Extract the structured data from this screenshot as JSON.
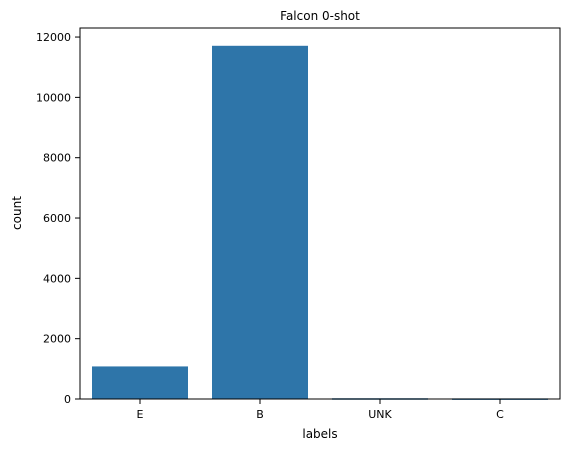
{
  "chart_data": {
    "type": "bar",
    "title": "Falcon 0-shot",
    "xlabel": "labels",
    "ylabel": "count",
    "categories": [
      "E",
      "B",
      "UNK",
      "C"
    ],
    "values": [
      1080,
      11710,
      25,
      20
    ],
    "ylim": [
      0,
      12300
    ],
    "yticks": [
      0,
      2000,
      4000,
      6000,
      8000,
      10000,
      12000
    ],
    "grid": false,
    "bar_color": "#2e75a9"
  }
}
